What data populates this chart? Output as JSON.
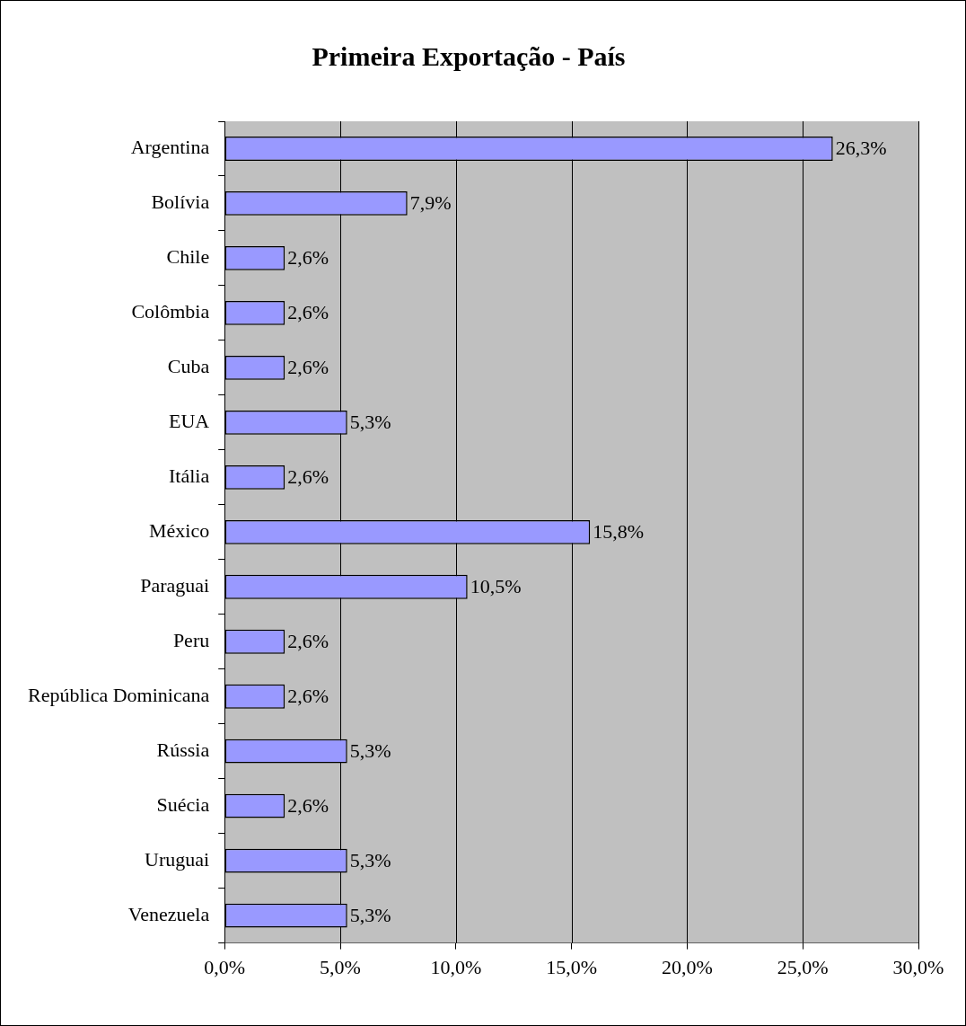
{
  "chart_data": {
    "type": "bar",
    "orientation": "horizontal",
    "title": "Primeira Exportação - País",
    "categories": [
      "Argentina",
      "Bolívia",
      "Chile",
      "Colômbia",
      "Cuba",
      "EUA",
      "Itália",
      "México",
      "Paraguai",
      "Peru",
      "República Dominicana",
      "Rússia",
      "Suécia",
      "Uruguai",
      "Venezuela"
    ],
    "values": [
      26.3,
      7.9,
      2.6,
      2.6,
      2.6,
      5.3,
      2.6,
      15.8,
      10.5,
      2.6,
      2.6,
      5.3,
      2.6,
      5.3,
      5.3
    ],
    "value_labels": [
      "26,3%",
      "7,9%",
      "2,6%",
      "2,6%",
      "2,6%",
      "5,3%",
      "2,6%",
      "15,8%",
      "10,5%",
      "2,6%",
      "2,6%",
      "5,3%",
      "2,6%",
      "5,3%",
      "5,3%"
    ],
    "color": "#9999ff",
    "xlim": [
      0,
      30
    ],
    "xticks": [
      {
        "value": 0,
        "label": "0,0%"
      },
      {
        "value": 5,
        "label": "5,0%"
      },
      {
        "value": 10,
        "label": "10,0%"
      },
      {
        "value": 15,
        "label": "15,0%"
      },
      {
        "value": 20,
        "label": "20,0%"
      },
      {
        "value": 25,
        "label": "25,0%"
      },
      {
        "value": 30,
        "label": "30,0%"
      }
    ],
    "grid": "x",
    "legend": false
  }
}
